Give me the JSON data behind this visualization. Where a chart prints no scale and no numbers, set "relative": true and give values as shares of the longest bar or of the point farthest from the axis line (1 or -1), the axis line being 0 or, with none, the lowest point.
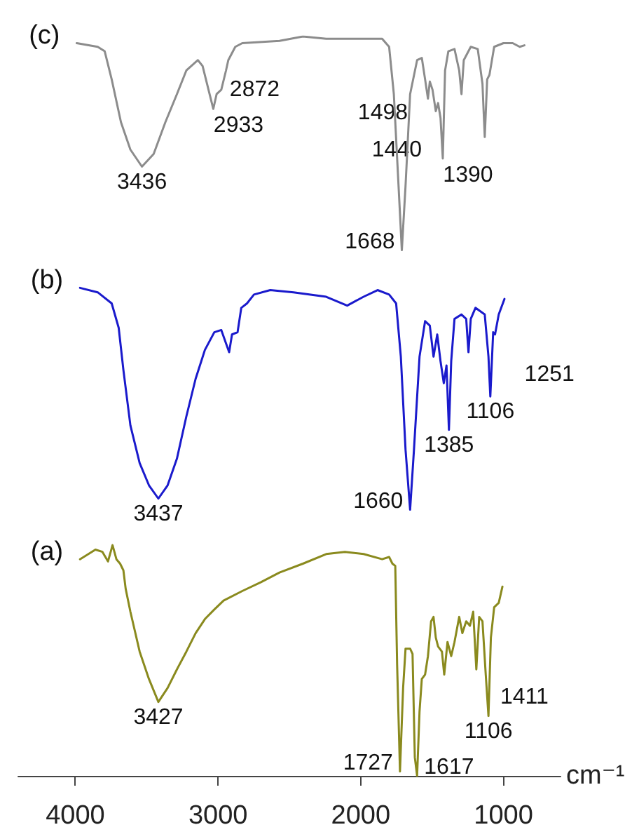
{
  "chart_data": {
    "type": "line",
    "relative": true,
    "xlim": [
      4400,
      600
    ],
    "xticks": [
      4000,
      3000,
      2000,
      1000
    ],
    "xlabel": "cm⁻¹",
    "series": [
      {
        "name": "(c)",
        "color": "#8c8c8c",
        "x": [
          3990,
          3843,
          3794,
          3745,
          3680,
          3614,
          3533,
          3451,
          3369,
          3288,
          3222,
          3141,
          3108,
          3059,
          3033,
          3010,
          2977,
          2944,
          2928,
          2879,
          2830,
          2569,
          2405,
          2242,
          1980,
          1850,
          1801,
          1768,
          1735,
          1712,
          1686,
          1654,
          1605,
          1572,
          1549,
          1529,
          1516,
          1497,
          1474,
          1458,
          1441,
          1425,
          1409,
          1386,
          1343,
          1310,
          1294,
          1278,
          1229,
          1180,
          1147,
          1131,
          1114,
          1098,
          1065,
          1000,
          935,
          886,
          853
        ],
        "values": [
          0.991,
          0.986,
          0.98,
          0.942,
          0.884,
          0.847,
          0.824,
          0.841,
          0.884,
          0.922,
          0.954,
          0.968,
          0.96,
          0.922,
          0.902,
          0.922,
          0.928,
          0.954,
          0.968,
          0.986,
          0.991,
          0.994,
          1.0,
          0.997,
          0.997,
          0.997,
          0.986,
          0.922,
          0.798,
          0.711,
          0.798,
          0.922,
          0.968,
          0.971,
          0.942,
          0.916,
          0.939,
          0.928,
          0.899,
          0.91,
          0.89,
          0.835,
          0.954,
          0.98,
          0.983,
          0.954,
          0.922,
          0.968,
          0.986,
          0.983,
          0.936,
          0.864,
          0.942,
          0.948,
          0.986,
          0.991,
          0.991,
          0.986,
          0.988
        ]
      },
      {
        "name": "(b)",
        "color": "#1a1acc",
        "x": [
          3967,
          3843,
          3745,
          3696,
          3663,
          3614,
          3549,
          3484,
          3418,
          3353,
          3288,
          3222,
          3157,
          3092,
          3026,
          2977,
          2944,
          2922,
          2902,
          2863,
          2837,
          2797,
          2748,
          2634,
          2471,
          2242,
          2095,
          1980,
          1882,
          1801,
          1752,
          1719,
          1686,
          1654,
          1627,
          1588,
          1549,
          1516,
          1490,
          1464,
          1441,
          1418,
          1399,
          1382,
          1366,
          1343,
          1294,
          1261,
          1245,
          1229,
          1196,
          1131,
          1105,
          1092,
          1072,
          1059,
          1033,
          993
        ],
        "values": [
          0.66,
          0.654,
          0.639,
          0.606,
          0.549,
          0.474,
          0.423,
          0.393,
          0.375,
          0.393,
          0.429,
          0.486,
          0.537,
          0.576,
          0.6,
          0.603,
          0.585,
          0.573,
          0.597,
          0.6,
          0.633,
          0.639,
          0.651,
          0.657,
          0.654,
          0.648,
          0.636,
          0.648,
          0.657,
          0.651,
          0.639,
          0.567,
          0.441,
          0.36,
          0.441,
          0.567,
          0.615,
          0.609,
          0.567,
          0.597,
          0.561,
          0.531,
          0.555,
          0.468,
          0.561,
          0.618,
          0.624,
          0.618,
          0.573,
          0.618,
          0.633,
          0.624,
          0.567,
          0.513,
          0.6,
          0.597,
          0.624,
          0.645
        ]
      },
      {
        "name": "(a)",
        "color": "#8a8a1e",
        "x": [
          3967,
          3908,
          3859,
          3810,
          3771,
          3739,
          3712,
          3686,
          3663,
          3647,
          3614,
          3549,
          3484,
          3418,
          3353,
          3288,
          3222,
          3157,
          3092,
          3026,
          2961,
          2830,
          2699,
          2569,
          2405,
          2242,
          2111,
          1980,
          1850,
          1801,
          1778,
          1758,
          1745,
          1725,
          1703,
          1686,
          1654,
          1637,
          1621,
          1605,
          1588,
          1572,
          1549,
          1529,
          1507,
          1490,
          1474,
          1458,
          1431,
          1415,
          1392,
          1366,
          1343,
          1310,
          1288,
          1261,
          1235,
          1212,
          1190,
          1170,
          1147,
          1124,
          1105,
          1088,
          1065,
          1033,
          1007
        ],
        "values": [
          0.293,
          0.3,
          0.306,
          0.303,
          0.29,
          0.312,
          0.293,
          0.287,
          0.278,
          0.253,
          0.222,
          0.168,
          0.131,
          0.1,
          0.119,
          0.144,
          0.168,
          0.193,
          0.212,
          0.225,
          0.237,
          0.25,
          0.262,
          0.275,
          0.287,
          0.3,
          0.303,
          0.3,
          0.293,
          0.296,
          0.287,
          0.284,
          0.15,
          0.006,
          0.119,
          0.172,
          0.172,
          0.165,
          0.025,
          0,
          0.087,
          0.131,
          0.137,
          0.162,
          0.209,
          0.215,
          0.187,
          0.175,
          0.168,
          0.137,
          0.181,
          0.162,
          0.181,
          0.215,
          0.193,
          0.209,
          0.203,
          0.222,
          0.144,
          0.215,
          0.209,
          0.137,
          0.081,
          0.187,
          0.228,
          0.234,
          0.256
        ]
      }
    ],
    "annotations": [
      {
        "text": "3436",
        "x": 3533,
        "y": 0.824
      },
      {
        "text": "2933",
        "x": 3033,
        "y": 0.902
      },
      {
        "text": "2872",
        "x": 2977,
        "y": 0.928
      },
      {
        "text": "1498",
        "x": 1572,
        "y": 0.916
      },
      {
        "text": "1440",
        "x": 1474,
        "y": 0.899
      },
      {
        "text": "1668",
        "x": 1712,
        "y": 0.711
      },
      {
        "text": "1390",
        "x": 1425,
        "y": 0.835
      },
      {
        "text": "3437",
        "x": 3418,
        "y": 0.375
      },
      {
        "text": "1660",
        "x": 1654,
        "y": 0.36
      },
      {
        "text": "1385",
        "x": 1382,
        "y": 0.468
      },
      {
        "text": "1251",
        "x": 1245,
        "y": 0.573
      },
      {
        "text": "1106",
        "x": 1092,
        "y": 0.513
      },
      {
        "text": "3427",
        "x": 3418,
        "y": 0.1
      },
      {
        "text": "1727",
        "x": 1725,
        "y": 0.006
      },
      {
        "text": "1617",
        "x": 1605,
        "y": 0
      },
      {
        "text": "1411",
        "x": 1415,
        "y": 0.137
      },
      {
        "text": "1106",
        "x": 1105,
        "y": 0.081
      }
    ]
  }
}
